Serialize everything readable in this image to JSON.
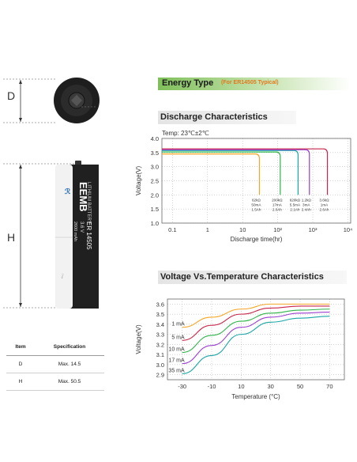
{
  "product": {
    "dim_d_label": "D",
    "dim_h_label": "H",
    "battery_label": {
      "brand": "EEMB",
      "model": "ER 14505",
      "voltage": "3.6 V",
      "sub1": "2600 mAh",
      "sub2": "LITHIUM BATTERY"
    }
  },
  "spec_table": {
    "headers": [
      "Item",
      "Specification"
    ],
    "rows": [
      {
        "item": "D",
        "spec": "Max. 14.5"
      },
      {
        "item": "H",
        "spec": "Max. 50.5"
      }
    ]
  },
  "energy_banner": {
    "title": "Energy Type",
    "subtitle": "(For ER14505 Typical)"
  },
  "colors": {
    "orange": "#f5a623",
    "green": "#2fb54a",
    "teal": "#1aa6a6",
    "purple": "#9b3fd0",
    "crimson": "#c8254a",
    "red": "#d43a3a",
    "blue": "#2e6fd0",
    "gray_axis": "#555555"
  },
  "chart_data": [
    {
      "type": "line",
      "title": "Discharge Characteristics",
      "annotation": "Temp: 23℃±2℃",
      "xlabel": "Discharge time(hr)",
      "ylabel": "Voltage(V)",
      "x_scale": "log",
      "xlim": [
        0.05,
        12000
      ],
      "ylim": [
        1.0,
        4.0
      ],
      "x_ticks": [
        "0.1",
        "1",
        "10",
        "10²",
        "10³",
        "10⁴"
      ],
      "x_tick_values": [
        0.1,
        1,
        10,
        100,
        1000,
        10000
      ],
      "y_ticks": [
        "1.0",
        "1.5",
        "2.0",
        "2.5",
        "3.0",
        "3.5",
        "4.0"
      ],
      "y_tick_values": [
        1.0,
        1.5,
        2.0,
        2.5,
        3.0,
        3.5,
        4.0
      ],
      "grid": "dotted",
      "series": [
        {
          "name": "62kΩ 50mA 1.5Ah",
          "color": "#f5a623",
          "plateau": 3.45,
          "end_hr": 30,
          "cutoff": 2.0,
          "label": [
            "62kΩ",
            "50mA",
            "1.5Ah"
          ]
        },
        {
          "name": "200kΩ 17mA 2.0Ah",
          "color": "#2fb54a",
          "plateau": 3.52,
          "end_hr": 118,
          "cutoff": 2.0,
          "label": [
            "200kΩ",
            "17mA",
            "2.0Ah"
          ]
        },
        {
          "name": "620kΩ 5.5mA 2.1Ah",
          "color": "#1aa6a6",
          "plateau": 3.57,
          "end_hr": 380,
          "cutoff": 2.0,
          "label": [
            "620kΩ",
            "5.5mA",
            "2.1Ah"
          ]
        },
        {
          "name": "1.2kΩ 3mA 2.4Ah",
          "color": "#9b3fd0",
          "plateau": 3.6,
          "end_hr": 800,
          "cutoff": 2.0,
          "label": [
            "1.2kΩ",
            "3mA",
            "2.4Ah"
          ]
        },
        {
          "name": "3.6kΩ 1mA 2.6Ah",
          "color": "#c8254a",
          "plateau": 3.63,
          "end_hr": 2600,
          "cutoff": 2.0,
          "label": [
            "3.6kΩ",
            "1mA",
            "2.6Ah"
          ]
        }
      ]
    },
    {
      "type": "line",
      "title": "Voltage Vs.Temperature Characteristics",
      "xlabel": "Temperature (°C)",
      "ylabel": "Voltage(V)",
      "x": [
        -30,
        -10,
        10,
        30,
        50,
        70
      ],
      "xlim": [
        -40,
        80
      ],
      "ylim": [
        2.85,
        3.65
      ],
      "x_ticks": [
        "-30",
        "-10",
        "10",
        "30",
        "50",
        "70"
      ],
      "y_ticks": [
        "2.9",
        "3.0",
        "3.1",
        "3.2",
        "3.3",
        "3.4",
        "3.5",
        "3.6"
      ],
      "y_tick_values": [
        2.9,
        3.0,
        3.1,
        3.2,
        3.3,
        3.4,
        3.5,
        3.6
      ],
      "grid": "dotted",
      "series": [
        {
          "name": "1 mA",
          "color": "#f5a623",
          "values": [
            3.37,
            3.47,
            3.55,
            3.6,
            3.6,
            3.6
          ]
        },
        {
          "name": "5 mA",
          "color": "#c8254a",
          "values": [
            3.24,
            3.39,
            3.5,
            3.56,
            3.58,
            3.58
          ]
        },
        {
          "name": "10 mA",
          "color": "#2fb54a",
          "values": [
            3.12,
            3.29,
            3.43,
            3.51,
            3.54,
            3.55
          ]
        },
        {
          "name": "17 mA",
          "color": "#9b3fd0",
          "values": [
            3.01,
            3.19,
            3.37,
            3.47,
            3.51,
            3.52
          ]
        },
        {
          "name": "35 mA",
          "color": "#1aa6a6",
          "values": [
            2.91,
            3.09,
            3.3,
            3.42,
            3.46,
            3.48
          ]
        }
      ]
    }
  ]
}
